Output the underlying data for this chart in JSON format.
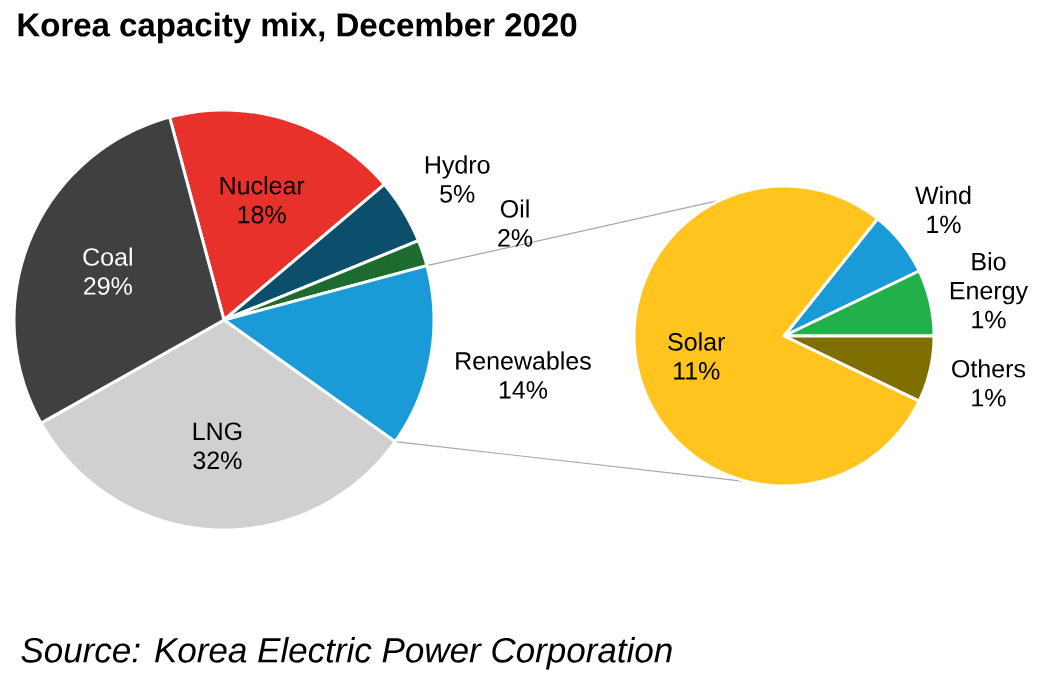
{
  "chart_data": [
    {
      "type": "pie",
      "title": "Korea capacity mix, December 2020",
      "categories": [
        "Nuclear",
        "Hydro",
        "Oil",
        "Renewables",
        "LNG",
        "Coal"
      ],
      "values": [
        18,
        5,
        2,
        14,
        32,
        29
      ],
      "value_labels": [
        "18%",
        "5%",
        "2%",
        "14%",
        "32%",
        "29%"
      ],
      "colors": [
        "#e8312a",
        "#0b4f6c",
        "#1e6b30",
        "#1a9ad6",
        "#d0d0d0",
        "#404040"
      ],
      "annotations": [
        "Source: Korea Electric Power Corporation"
      ]
    },
    {
      "type": "pie",
      "categories": [
        "Wind",
        "Bio Energy",
        "Others",
        "Solar"
      ],
      "values": [
        1,
        1,
        1,
        11
      ],
      "value_labels": [
        "1%",
        "1%",
        "1%",
        "11%"
      ],
      "colors": [
        "#1a9ad6",
        "#22b04b",
        "#7f6f00",
        "#ffc41e"
      ]
    }
  ]
}
